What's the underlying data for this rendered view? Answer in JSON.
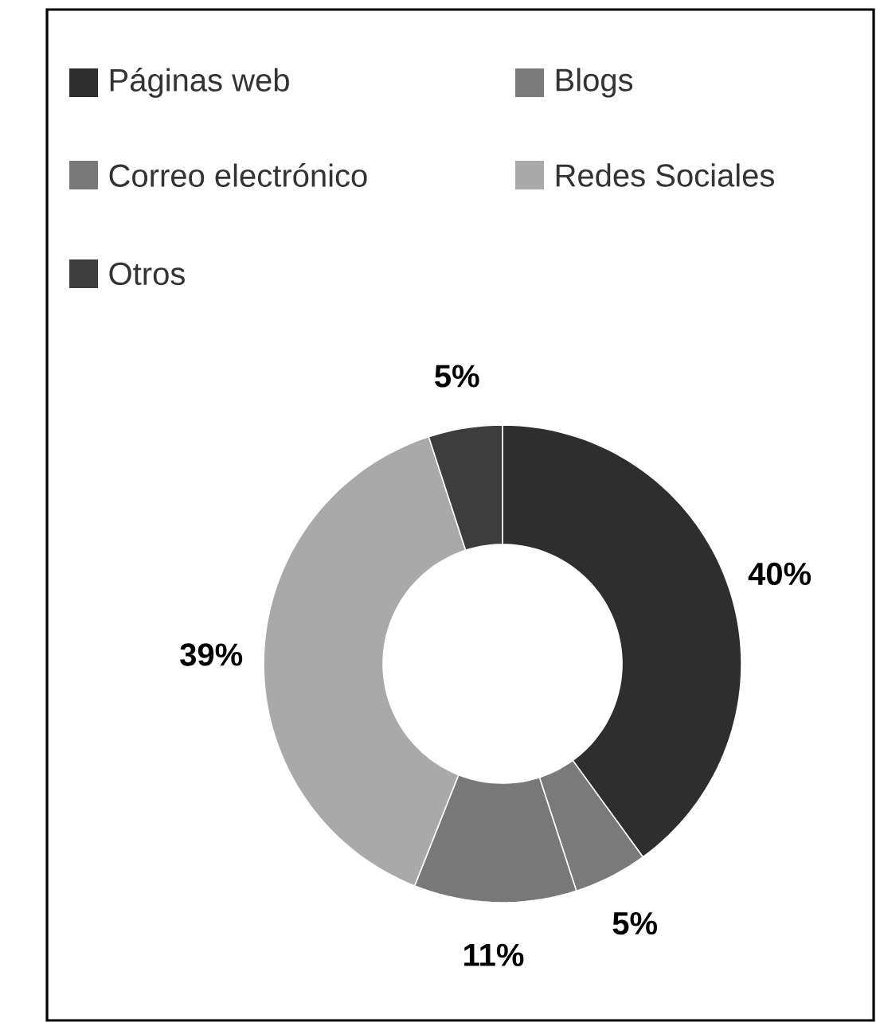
{
  "chart_data": {
    "type": "donut",
    "categories": [
      "Páginas web",
      "Blogs",
      "Correo electrónico",
      "Redes Sociales",
      "Otros"
    ],
    "values": [
      40,
      5,
      11,
      39,
      5
    ],
    "value_labels": [
      "40%",
      "5%",
      "11%",
      "39%",
      "5%"
    ],
    "colors": [
      "#2e2e2e",
      "#7a7a7a",
      "#787878",
      "#a9a9a9",
      "#3d3d3d"
    ],
    "legend": "top"
  }
}
